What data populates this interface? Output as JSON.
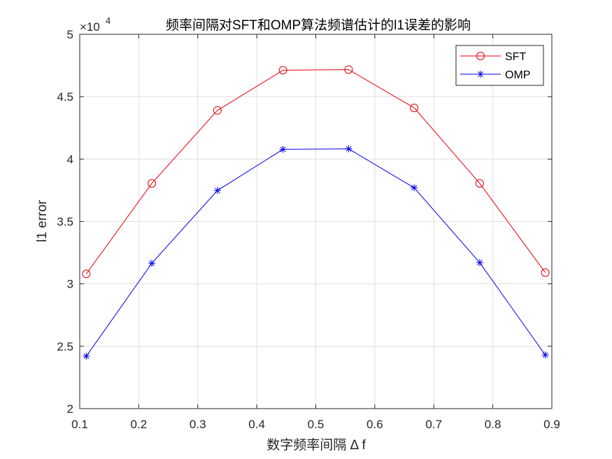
{
  "chart_data": {
    "type": "line",
    "title": "频率间隔对SFT和OMP算法频谱估计的l1误差的影响",
    "xlabel": "数字频率间隔 Δ f",
    "ylabel": "l1 error",
    "exponent_label": "×10",
    "exponent_power": "4",
    "xlim": [
      0.1,
      0.9
    ],
    "ylim": [
      20000,
      50000
    ],
    "x_ticks": [
      0.1,
      0.2,
      0.3,
      0.4,
      0.5,
      0.6,
      0.7,
      0.8,
      0.9
    ],
    "x_tick_labels": [
      "0.1",
      "0.2",
      "0.3",
      "0.4",
      "0.5",
      "0.6",
      "0.7",
      "0.8",
      "0.9"
    ],
    "y_ticks": [
      20000,
      25000,
      30000,
      35000,
      40000,
      45000,
      50000
    ],
    "y_tick_labels": [
      "2",
      "2.5",
      "3",
      "3.5",
      "4",
      "4.5",
      "5"
    ],
    "grid": true,
    "legend_position": "top-right",
    "x": [
      0.1111,
      0.2222,
      0.3333,
      0.4444,
      0.5556,
      0.6667,
      0.7778,
      0.8889
    ],
    "series": [
      {
        "name": "SFT",
        "color": "#e8000b",
        "marker": "circle",
        "values": [
          30800,
          38050,
          43900,
          47120,
          47170,
          44100,
          38050,
          30900
        ]
      },
      {
        "name": "OMP",
        "color": "#0000e6",
        "marker": "asterisk",
        "values": [
          24200,
          31650,
          37480,
          40780,
          40820,
          37700,
          31700,
          24300
        ]
      }
    ]
  }
}
